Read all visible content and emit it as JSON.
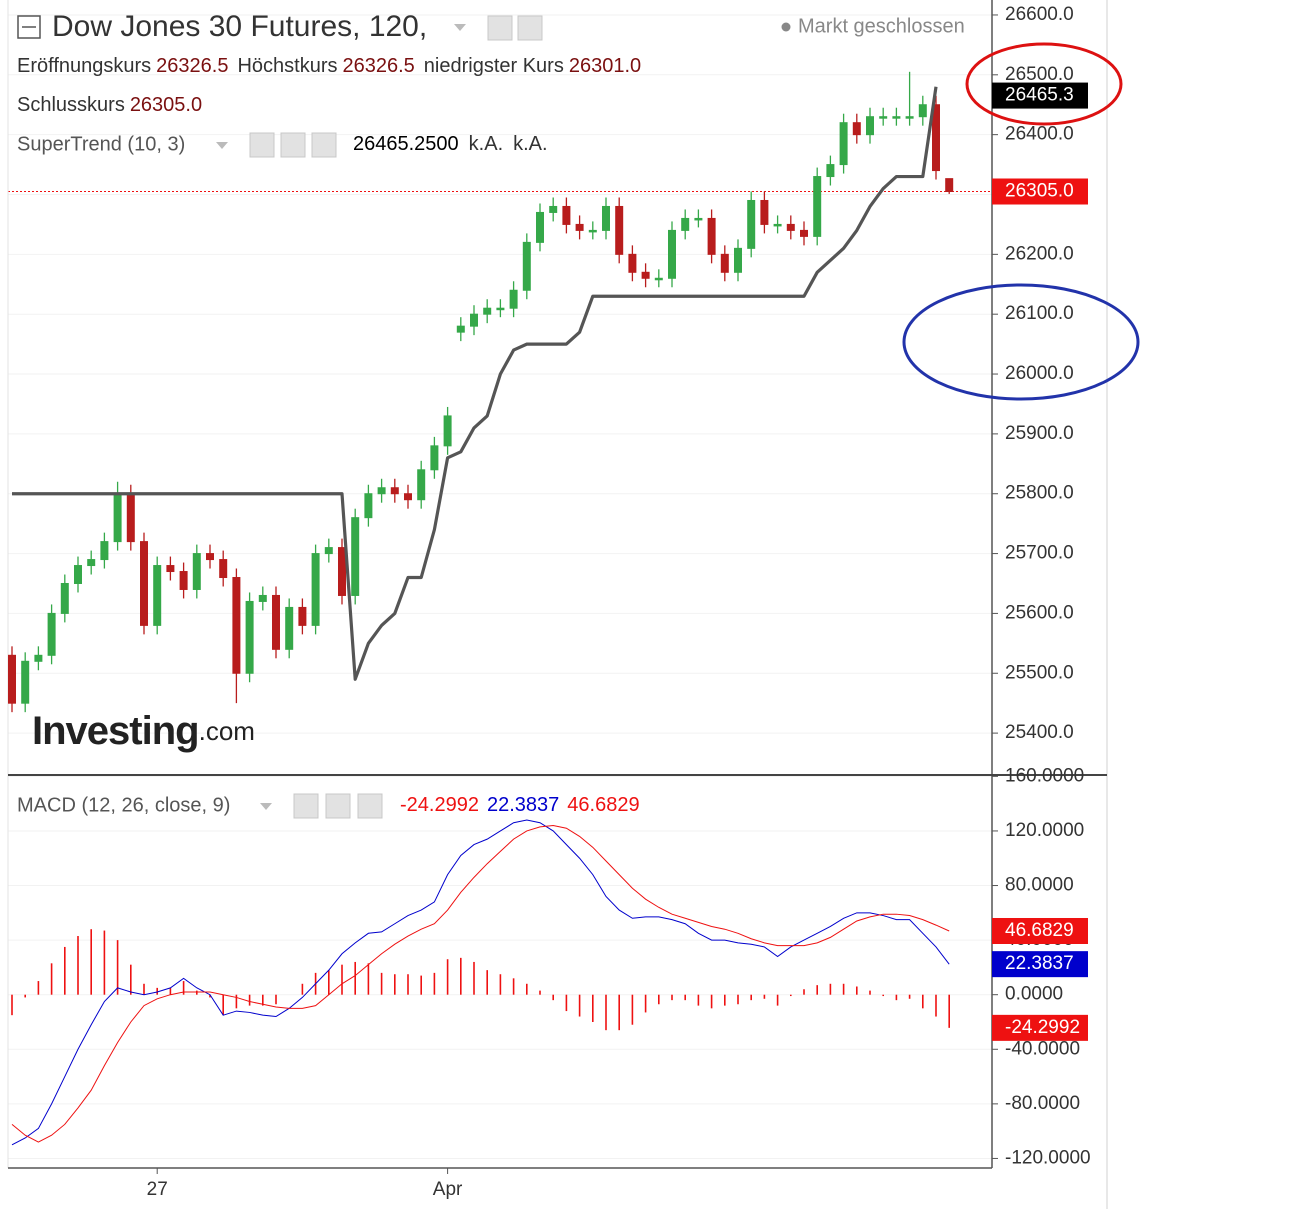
{
  "chart_data": [
    {
      "type": "candlestick",
      "title": "Dow Jones 30 Futures, 120,",
      "status": "Markt geschlossen",
      "ohlc": [
        {
          "label": "Eröffnungskurs",
          "value": "26326.5"
        },
        {
          "label": "Höchstkurs",
          "value": "26326.5"
        },
        {
          "label": "niedrigster Kurs",
          "value": "26301.0"
        },
        {
          "label": "Schlusskurs",
          "value": "26305.0"
        }
      ],
      "watermark": [
        "Investing",
        ".com"
      ],
      "categories": [
        null,
        null,
        null,
        null,
        null,
        null,
        null,
        null,
        null,
        null,
        null,
        "27",
        null,
        null,
        null,
        null,
        null,
        null,
        null,
        null,
        null,
        null,
        null,
        null,
        null,
        null,
        null,
        null,
        null,
        null,
        null,
        null,
        null,
        "Apr",
        null,
        null,
        null,
        null,
        null,
        null,
        null,
        null,
        null,
        null,
        null,
        null,
        null,
        null,
        null,
        null,
        null,
        null,
        null,
        null,
        null,
        null,
        null,
        null,
        null,
        null,
        null,
        null,
        null,
        null,
        null,
        null,
        null,
        null,
        null,
        null,
        null,
        null
      ],
      "open": [
        25530,
        25450,
        25520,
        25530,
        25600,
        25650,
        25680,
        25690,
        25720,
        25800,
        25720,
        25580,
        25680,
        25670,
        25640,
        25700,
        25690,
        25660,
        25500,
        25620,
        25630,
        25540,
        25610,
        25580,
        25700,
        25710,
        25630,
        25760,
        25800,
        25810,
        25800,
        25790,
        25840,
        25880,
        26070,
        26080,
        26100,
        26110,
        26110,
        26140,
        26220,
        26270,
        26280,
        26250,
        26240,
        26240,
        26280,
        26200,
        26170,
        26160,
        26160,
        26240,
        26260,
        26260,
        26200,
        26170,
        26210,
        26290,
        26250,
        26250,
        26240,
        26230,
        26330,
        26350,
        26420,
        26400,
        26430,
        26430,
        26430,
        26430,
        26450,
        26326.5
      ],
      "high": [
        25545,
        25535,
        25545,
        25615,
        25665,
        25695,
        25705,
        25735,
        25820,
        25815,
        25735,
        25695,
        25695,
        25685,
        25715,
        25715,
        25705,
        25675,
        25635,
        25645,
        25645,
        25625,
        25625,
        25715,
        25725,
        25725,
        25775,
        25815,
        25825,
        25825,
        25815,
        25855,
        25895,
        25945,
        26095,
        26115,
        26125,
        26125,
        26155,
        26235,
        26285,
        26295,
        26295,
        26265,
        26255,
        26295,
        26295,
        26215,
        26185,
        26175,
        26255,
        26275,
        26275,
        26275,
        26215,
        26225,
        26305,
        26305,
        26265,
        26265,
        26255,
        26345,
        26365,
        26435,
        26435,
        26445,
        26445,
        26445,
        26505,
        26465,
        26465,
        26326.5
      ],
      "low": [
        25435,
        25435,
        25505,
        25515,
        25585,
        25635,
        25665,
        25675,
        25705,
        25705,
        25565,
        25565,
        25655,
        25625,
        25625,
        25675,
        25645,
        25450,
        25485,
        25605,
        25525,
        25525,
        25565,
        25565,
        25685,
        25615,
        25615,
        25745,
        25785,
        25785,
        25775,
        25775,
        25825,
        25865,
        26055,
        26065,
        26085,
        26095,
        26095,
        26125,
        26205,
        26255,
        26235,
        26225,
        26225,
        26225,
        26185,
        26155,
        26145,
        26145,
        26145,
        26225,
        26245,
        26185,
        26155,
        26155,
        26195,
        26235,
        26235,
        26225,
        26215,
        26215,
        26315,
        26335,
        26385,
        26385,
        26415,
        26415,
        26415,
        26415,
        26325,
        26301
      ],
      "close": [
        25450,
        25520,
        25530,
        25600,
        25650,
        25680,
        25690,
        25720,
        25800,
        25720,
        25580,
        25680,
        25670,
        25640,
        25700,
        25690,
        25660,
        25500,
        25620,
        25630,
        25540,
        25610,
        25580,
        25700,
        25710,
        25630,
        25760,
        25800,
        25810,
        25800,
        25790,
        25840,
        25880,
        25930,
        26080,
        26100,
        26110,
        26110,
        26140,
        26220,
        26270,
        26280,
        26250,
        26240,
        26240,
        26280,
        26200,
        26170,
        26160,
        26160,
        26240,
        26260,
        26260,
        26200,
        26170,
        26210,
        26290,
        26250,
        26250,
        26240,
        26230,
        26330,
        26350,
        26420,
        26400,
        26430,
        26430,
        26430,
        26430,
        26450,
        26340,
        26305
      ],
      "up_color": "#35a849",
      "down_color": "#b81d1d",
      "supertrend": {
        "name": "SuperTrend (10, 3)",
        "color": "#555555",
        "legend_values": [
          "26465.2500",
          "k.A.",
          "k.A."
        ],
        "values": [
          25800,
          25800,
          25800,
          25800,
          25800,
          25800,
          25800,
          25800,
          25800,
          25800,
          25800,
          25800,
          25800,
          25800,
          25800,
          25800,
          25800,
          25800,
          25800,
          25800,
          25800,
          25800,
          25800,
          25800,
          25800,
          25800,
          25490,
          25550,
          25580,
          25600,
          25660,
          25660,
          25740,
          25860,
          25870,
          25910,
          25930,
          26000,
          26040,
          26050,
          26050,
          26050,
          26050,
          26070,
          26130,
          26130,
          26130,
          26130,
          26130,
          26130,
          26130,
          26130,
          26130,
          26130,
          26130,
          26130,
          26130,
          26130,
          26130,
          26130,
          26130,
          26170,
          26190,
          26210,
          26240,
          26280,
          26310,
          26330,
          26330,
          26330,
          26480,
          null
        ]
      },
      "price_labels": [
        {
          "value": 26465.3,
          "label": "26465.3",
          "color": "#000000",
          "line": false
        },
        {
          "value": 26305,
          "label": "26305.0",
          "color": "#ee1111",
          "line": true
        }
      ],
      "ylim": [
        25330,
        26625
      ],
      "yticks": [
        {
          "value": 25400,
          "label": "25400.0"
        },
        {
          "value": 25500,
          "label": "25500.0"
        },
        {
          "value": 25600,
          "label": "25600.0"
        },
        {
          "value": 25700,
          "label": "25700.0"
        },
        {
          "value": 25800,
          "label": "25800.0"
        },
        {
          "value": 25900,
          "label": "25900.0"
        },
        {
          "value": 26000,
          "label": "26000.0"
        },
        {
          "value": 26100,
          "label": "26100.0"
        },
        {
          "value": 26200,
          "label": "26200.0"
        },
        {
          "value": 26300,
          "label": "26300.0"
        },
        {
          "value": 26400,
          "label": "26400.0"
        },
        {
          "value": 26500,
          "label": "26500.0"
        },
        {
          "value": 26600,
          "label": "26600.0"
        }
      ],
      "grid": true
    },
    {
      "type": "macd",
      "title": "MACD (12, 26, close, 9)",
      "series": [
        {
          "style": "histogram",
          "color": "#ee1111",
          "value_label": "-24.2992",
          "values": [
            -15,
            -2,
            10,
            23,
            35,
            43,
            48,
            47,
            40,
            22,
            8,
            5,
            5,
            10,
            3,
            -2,
            -15,
            -10,
            -8,
            -8,
            -7,
            0,
            8,
            16,
            18,
            22,
            24,
            23,
            16,
            15,
            15,
            14,
            16,
            26,
            27,
            24,
            18,
            15,
            12,
            8,
            3,
            -4,
            -12,
            -16,
            -20,
            -26,
            -26,
            -22,
            -13,
            -7,
            -4,
            -4,
            -8,
            -10,
            -8,
            -7,
            -4,
            -3,
            -8,
            -1,
            4,
            7,
            8,
            8,
            6,
            3,
            -1,
            -4,
            -3,
            -10,
            -16,
            -24.2992
          ]
        },
        {
          "style": "line",
          "color": "#0000cc",
          "value_label": "22.3837",
          "values": [
            -110,
            -105,
            -98,
            -80,
            -60,
            -40,
            -22,
            -5,
            5,
            2,
            0,
            2,
            5,
            12,
            5,
            0,
            -15,
            -12,
            -13,
            -15,
            -16,
            -10,
            -2,
            8,
            18,
            30,
            38,
            45,
            46,
            52,
            58,
            62,
            68,
            88,
            102,
            110,
            114,
            120,
            126,
            128,
            126,
            120,
            110,
            100,
            88,
            72,
            62,
            56,
            57,
            57,
            55,
            52,
            45,
            40,
            40,
            38,
            37,
            35,
            28,
            35,
            40,
            45,
            50,
            56,
            60,
            60,
            58,
            55,
            55,
            45,
            35,
            22.3837
          ]
        },
        {
          "style": "line",
          "color": "#ee1111",
          "value_label": "46.6829",
          "values": [
            -95,
            -103,
            -108,
            -103,
            -95,
            -83,
            -70,
            -52,
            -35,
            -20,
            -8,
            -3,
            0,
            2,
            2,
            2,
            0,
            -2,
            -5,
            -7,
            -9,
            -10,
            -10,
            -8,
            0,
            8,
            14,
            22,
            30,
            37,
            43,
            48,
            52,
            62,
            75,
            86,
            96,
            105,
            114,
            120,
            123,
            124,
            122,
            116,
            108,
            98,
            88,
            78,
            70,
            64,
            59,
            56,
            53,
            50,
            48,
            45,
            41,
            38,
            36,
            36,
            36,
            38,
            42,
            48,
            54,
            57,
            59,
            59,
            58,
            55,
            51,
            46.6829
          ]
        }
      ],
      "ylim": [
        -127,
        161
      ],
      "yticks": [
        {
          "value": -120,
          "label": "-120.0000"
        },
        {
          "value": -80,
          "label": "-80.0000"
        },
        {
          "value": -40,
          "label": "-40.0000"
        },
        {
          "value": 0,
          "label": "0.0000"
        },
        {
          "value": 40,
          "label": "40.0000"
        },
        {
          "value": 80,
          "label": "80.0000"
        },
        {
          "value": 120,
          "label": "120.0000"
        },
        {
          "value": 160,
          "label": "160.0000"
        }
      ],
      "grid": true
    }
  ]
}
